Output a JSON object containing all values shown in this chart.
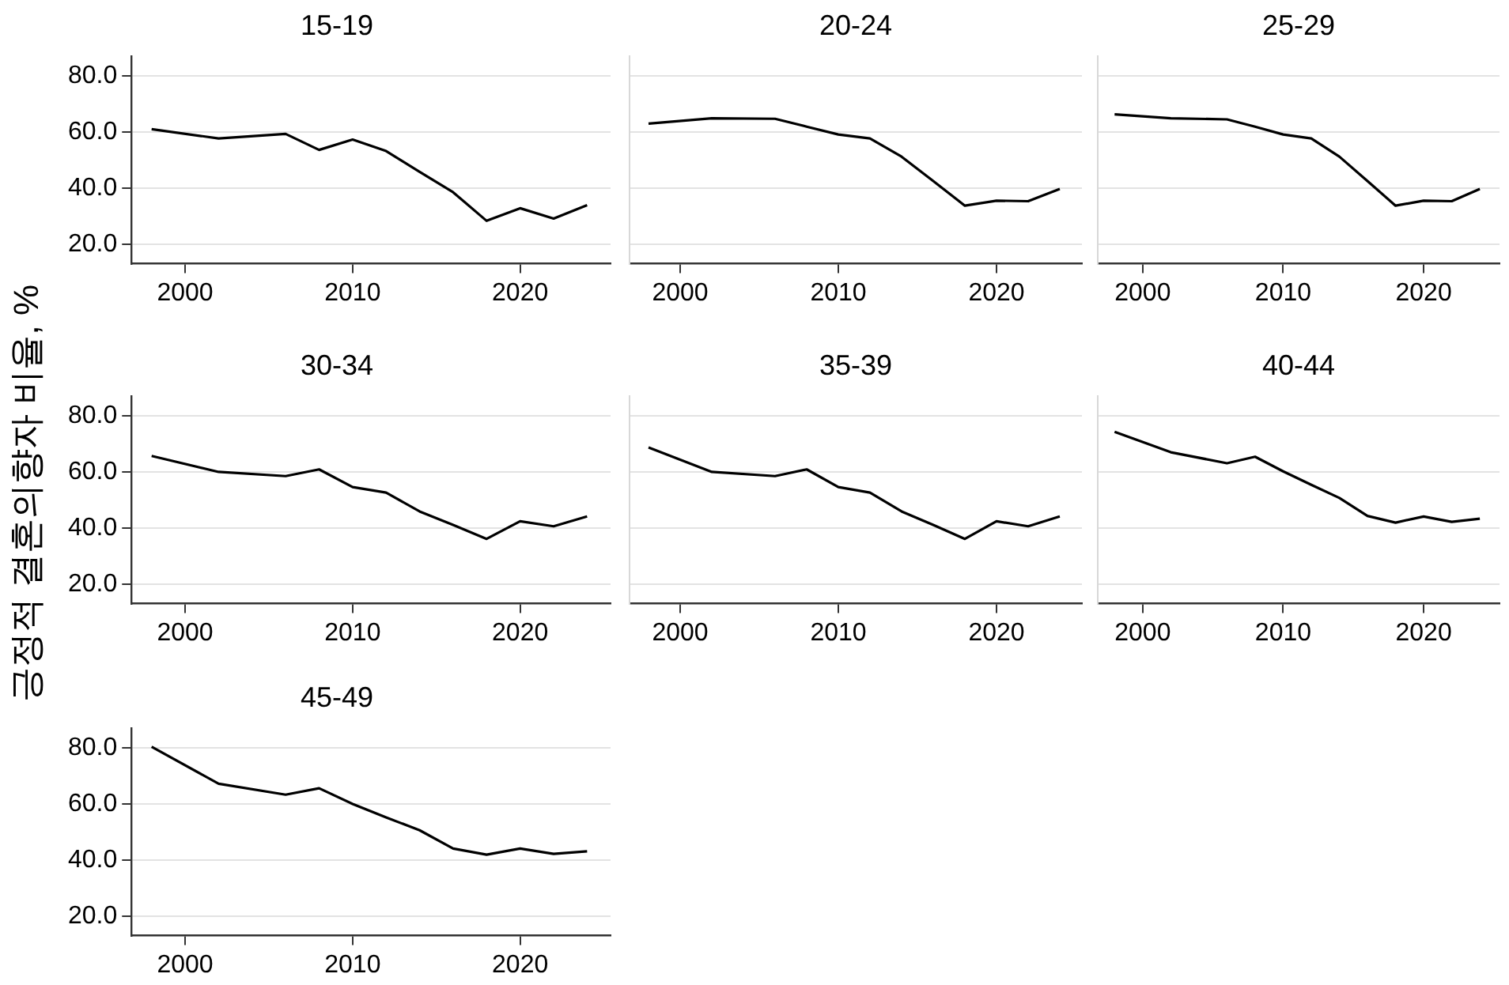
{
  "chart_data": [
    {
      "type": "line",
      "title": "15-19",
      "x": [
        1998,
        2002,
        2006,
        2008,
        2010,
        2012,
        2014,
        2016,
        2018,
        2020,
        2022,
        2024
      ],
      "series": [
        {
          "color": "#000000",
          "values": [
            61.0,
            57.7,
            59.3,
            53.6,
            57.3,
            53.2,
            45.8,
            38.5,
            28.3,
            32.8,
            29.1,
            33.9
          ]
        }
      ],
      "xlim": [
        1996.8,
        2025.4
      ],
      "ylim": [
        13,
        87
      ],
      "xticks": [
        2000,
        2010,
        2020
      ],
      "yticks": [
        {
          "value": 20,
          "label": "20.0"
        },
        {
          "value": 40,
          "label": "40.0"
        },
        {
          "value": 60,
          "label": "60.0"
        },
        {
          "value": 80,
          "label": "80.0"
        }
      ],
      "grid": "y"
    },
    {
      "type": "line",
      "title": "20-24",
      "x": [
        1998,
        2002,
        2006,
        2008,
        2010,
        2012,
        2014,
        2016,
        2018,
        2020,
        2022,
        2024
      ],
      "series": [
        {
          "color": "#000000",
          "values": [
            63.0,
            64.9,
            64.7,
            61.9,
            59.1,
            57.7,
            51.2,
            42.5,
            33.7,
            35.5,
            35.3,
            39.7
          ]
        }
      ],
      "xlim": [
        1996.8,
        2025.4
      ],
      "ylim": [
        13,
        87
      ],
      "xticks": [
        2000,
        2010,
        2020
      ],
      "yticks": [
        {
          "value": 20,
          "label": null
        },
        {
          "value": 40,
          "label": null
        },
        {
          "value": 60,
          "label": null
        },
        {
          "value": 80,
          "label": null
        }
      ],
      "grid": "y",
      "tick_labels": "x"
    },
    {
      "type": "line",
      "title": "25-29",
      "x": [
        1998,
        2002,
        2006,
        2008,
        2010,
        2012,
        2014,
        2016,
        2018,
        2020,
        2022,
        2024
      ],
      "series": [
        {
          "color": "#000000",
          "values": [
            66.3,
            64.9,
            64.5,
            61.9,
            59.1,
            57.7,
            51.2,
            42.5,
            33.7,
            35.5,
            35.3,
            39.7
          ]
        }
      ],
      "xlim": [
        1996.8,
        2025.4
      ],
      "ylim": [
        13,
        87
      ],
      "xticks": [
        2000,
        2010,
        2020
      ],
      "yticks": [
        {
          "value": 20,
          "label": null
        },
        {
          "value": 40,
          "label": null
        },
        {
          "value": 60,
          "label": null
        },
        {
          "value": 80,
          "label": null
        }
      ],
      "grid": "y",
      "tick_labels": "x"
    },
    {
      "type": "line",
      "title": "30-34",
      "ylabel": "긍정적 결혼의향자 비율, %",
      "x": [
        1998,
        2002,
        2006,
        2008,
        2010,
        2012,
        2014,
        2016,
        2018,
        2020,
        2022,
        2024
      ],
      "series": [
        {
          "color": "#000000",
          "values": [
            65.7,
            60.0,
            58.5,
            60.9,
            54.6,
            52.6,
            45.9,
            41.1,
            36.1,
            42.4,
            40.6,
            44.1
          ]
        }
      ],
      "xlim": [
        1996.8,
        2025.4
      ],
      "ylim": [
        13,
        87
      ],
      "xticks": [
        2000,
        2010,
        2020
      ],
      "yticks": [
        {
          "value": 20,
          "label": "20.0"
        },
        {
          "value": 40,
          "label": "40.0"
        },
        {
          "value": 60,
          "label": "60.0"
        },
        {
          "value": 80,
          "label": "80.0"
        }
      ],
      "grid": "y"
    },
    {
      "type": "line",
      "title": "35-39",
      "x": [
        1998,
        2002,
        2006,
        2008,
        2010,
        2012,
        2014,
        2016,
        2018,
        2020,
        2022,
        2024
      ],
      "series": [
        {
          "color": "#000000",
          "values": [
            68.7,
            60.0,
            58.5,
            60.9,
            54.6,
            52.6,
            45.9,
            41.1,
            36.1,
            42.4,
            40.6,
            44.1
          ]
        }
      ],
      "xlim": [
        1996.8,
        2025.4
      ],
      "ylim": [
        13,
        87
      ],
      "xticks": [
        2000,
        2010,
        2020
      ],
      "yticks": [
        {
          "value": 20,
          "label": null
        },
        {
          "value": 40,
          "label": null
        },
        {
          "value": 60,
          "label": null
        },
        {
          "value": 80,
          "label": null
        }
      ],
      "grid": "y",
      "tick_labels": "x"
    },
    {
      "type": "line",
      "title": "40-44",
      "x": [
        1998,
        2002,
        2006,
        2008,
        2010,
        2012,
        2014,
        2016,
        2018,
        2020,
        2022,
        2024
      ],
      "series": [
        {
          "color": "#000000",
          "values": [
            74.3,
            67.0,
            63.1,
            65.4,
            60.2,
            55.4,
            50.7,
            44.3,
            41.9,
            44.1,
            42.2,
            43.3
          ]
        }
      ],
      "xlim": [
        1996.8,
        2025.4
      ],
      "ylim": [
        13,
        87
      ],
      "xticks": [
        2000,
        2010,
        2020
      ],
      "yticks": [
        {
          "value": 20,
          "label": null
        },
        {
          "value": 40,
          "label": null
        },
        {
          "value": 60,
          "label": null
        },
        {
          "value": 80,
          "label": null
        }
      ],
      "grid": "y",
      "tick_labels": "x"
    },
    {
      "type": "line",
      "title": "45-49",
      "x": [
        1998,
        2002,
        2006,
        2008,
        2010,
        2012,
        2014,
        2016,
        2018,
        2020,
        2022,
        2024
      ],
      "series": [
        {
          "color": "#000000",
          "values": [
            80.4,
            67.2,
            63.3,
            65.6,
            60.0,
            55.2,
            50.6,
            44.1,
            41.9,
            44.1,
            42.2,
            43.1
          ]
        }
      ],
      "xlim": [
        1996.8,
        2025.4
      ],
      "ylim": [
        13,
        87
      ],
      "xticks": [
        2000,
        2010,
        2020
      ],
      "yticks": [
        {
          "value": 20,
          "label": "20.0"
        },
        {
          "value": 40,
          "label": "40.0"
        },
        {
          "value": 60,
          "label": "60.0"
        },
        {
          "value": 80,
          "label": "80.0"
        }
      ],
      "grid": "y"
    }
  ]
}
